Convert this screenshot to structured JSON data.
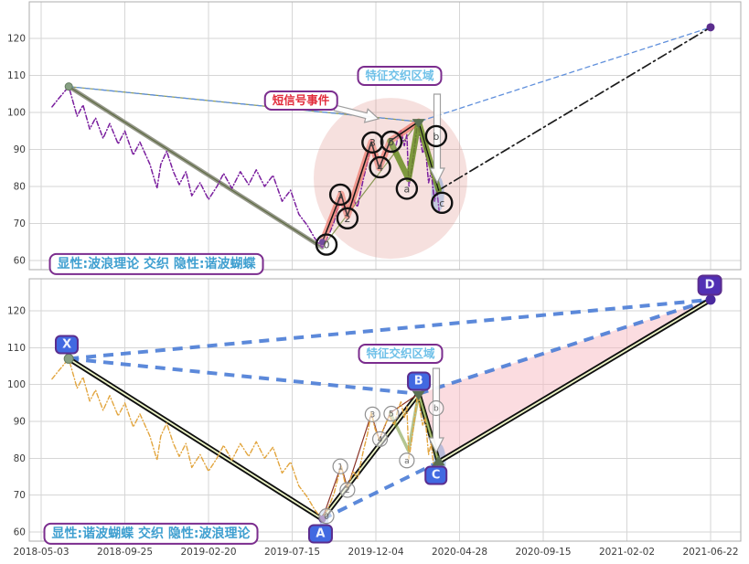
{
  "chart_data": {
    "type": "line",
    "x_tick_labels": [
      "2018-05-03",
      "2018-09-25",
      "2019-02-20",
      "2019-07-15",
      "2019-12-04",
      "2020-04-28",
      "2020-09-15",
      "2021-02-02",
      "2021-06-22"
    ],
    "y_tick_labels": [
      60,
      70,
      80,
      90,
      100,
      110,
      120
    ],
    "ylim": [
      57.5,
      130
    ],
    "grid": true,
    "panels": [
      {
        "id": "top",
        "mode_label": "显性:波浪理论 交织 隐性:谐波蝴蝶",
        "price_color": "#7a1f9e"
      },
      {
        "id": "bottom",
        "mode_label": "显性:谐波蝴蝶 交织 隐性:波浪理论",
        "price_color": "#e2a53e"
      }
    ],
    "price_series": {
      "x_unit": "x-tick index (0 = 2018-05-03, 1 tick ≈ 145 days)",
      "points": [
        [
          0.13,
          101.5
        ],
        [
          0.2,
          103.5
        ],
        [
          0.33,
          107
        ],
        [
          0.43,
          99
        ],
        [
          0.5,
          102
        ],
        [
          0.58,
          95.5
        ],
        [
          0.65,
          98.5
        ],
        [
          0.74,
          93
        ],
        [
          0.82,
          97
        ],
        [
          0.92,
          91.5
        ],
        [
          1.0,
          95
        ],
        [
          1.1,
          88.5
        ],
        [
          1.18,
          92
        ],
        [
          1.3,
          86
        ],
        [
          1.385,
          79.5
        ],
        [
          1.43,
          86
        ],
        [
          1.5,
          89.5
        ],
        [
          1.58,
          84
        ],
        [
          1.65,
          80.5
        ],
        [
          1.73,
          84
        ],
        [
          1.8,
          77.5
        ],
        [
          1.9,
          81
        ],
        [
          2.0,
          76.5
        ],
        [
          2.1,
          80
        ],
        [
          2.18,
          83.5
        ],
        [
          2.28,
          79.5
        ],
        [
          2.38,
          84
        ],
        [
          2.48,
          80.5
        ],
        [
          2.57,
          84.5
        ],
        [
          2.67,
          80
        ],
        [
          2.77,
          83
        ],
        [
          2.88,
          76
        ],
        [
          2.98,
          79
        ],
        [
          3.08,
          72.5
        ],
        [
          3.18,
          69.5
        ],
        [
          3.27,
          66
        ],
        [
          3.36,
          63.5
        ],
        [
          3.44,
          67
        ],
        [
          3.5,
          70.5
        ],
        [
          3.585,
          78
        ],
        [
          3.63,
          73.5
        ],
        [
          3.66,
          72
        ],
        [
          3.73,
          76.5
        ],
        [
          3.78,
          74.5
        ],
        [
          3.85,
          82
        ],
        [
          3.9,
          86.5
        ],
        [
          3.945,
          92.5
        ],
        [
          3.99,
          88
        ],
        [
          4.04,
          85
        ],
        [
          4.1,
          88.5
        ],
        [
          4.16,
          91.5
        ],
        [
          4.22,
          89
        ],
        [
          4.26,
          93
        ],
        [
          4.3,
          95.3
        ],
        [
          4.34,
          91
        ],
        [
          4.37,
          94
        ],
        [
          4.395,
          79.8
        ],
        [
          4.43,
          85
        ],
        [
          4.47,
          92
        ],
        [
          4.5,
          97.8
        ],
        [
          4.53,
          93
        ],
        [
          4.56,
          89
        ],
        [
          4.59,
          91
        ],
        [
          4.63,
          81
        ],
        [
          4.66,
          84
        ],
        [
          4.7,
          76
        ],
        [
          4.73,
          79
        ],
        [
          4.755,
          73.5
        ]
      ]
    },
    "elliott_wave": {
      "swing_points": {
        "0": [
          3.36,
          65
        ],
        "1": [
          3.585,
          78
        ],
        "2": [
          3.66,
          72
        ],
        "3": [
          3.945,
          92
        ],
        "4": [
          4.04,
          85
        ],
        "5": [
          4.17,
          92.3
        ],
        "a": [
          4.39,
          82
        ],
        "b": [
          4.51,
          97.5
        ],
        "c": [
          4.75,
          79
        ]
      },
      "label_positions": {
        "0": [
          3.41,
          64.3
        ],
        "1": [
          3.575,
          77.8
        ],
        "2": [
          3.66,
          71.4
        ],
        "3": [
          3.96,
          91.9
        ],
        "4": [
          4.05,
          85.2
        ],
        "5": [
          4.185,
          92.1
        ],
        "a": [
          4.37,
          79.4
        ],
        "b": [
          4.72,
          93.6
        ],
        "c": [
          4.79,
          75.6
        ]
      },
      "labels": [
        "0",
        "1",
        "2",
        "3",
        "4",
        "5",
        "a",
        "b",
        "c"
      ]
    },
    "harmonic_butterfly": {
      "points": {
        "X": [
          0.33,
          107
        ],
        "A": [
          3.36,
          63.5
        ],
        "B": [
          4.51,
          97.5
        ],
        "C": [
          4.75,
          79
        ],
        "D": [
          8.0,
          123
        ]
      },
      "legs": [
        [
          "X",
          "A"
        ],
        [
          "A",
          "B"
        ],
        [
          "B",
          "C"
        ],
        [
          "C",
          "D"
        ]
      ],
      "ratio_lines": [
        [
          "X",
          "B"
        ],
        [
          "X",
          "D"
        ],
        [
          "A",
          "C"
        ],
        [
          "B",
          "D"
        ]
      ]
    }
  },
  "annotations": {
    "feature_zone_top": "特征交织区域",
    "feature_zone_bottom": "特征交织区域",
    "signal_event": "短信号事件",
    "arrows": [
      {
        "name": "signal-right-arrow",
        "panel": "top"
      },
      {
        "name": "drop-down-arrow",
        "panel": "top"
      },
      {
        "name": "drop-down-arrow",
        "panel": "bottom"
      }
    ]
  },
  "colors": {
    "price_top": "#7a1f9e",
    "price_bottom": "#e2a53e",
    "ratio_dash_blue": "#4a7cd6",
    "thin_dash_blue": "#6090dc",
    "impulse_salmon": "#ed766a",
    "correction_olive": "#688c22",
    "forecast_black": "#1c1c1c",
    "zone_pink": "#dd827a",
    "tag_fill": "#4169e1",
    "tag_fill_d": "#5130b4",
    "tag_border": "#5b2d8e",
    "grid": "#d6d6d6"
  }
}
